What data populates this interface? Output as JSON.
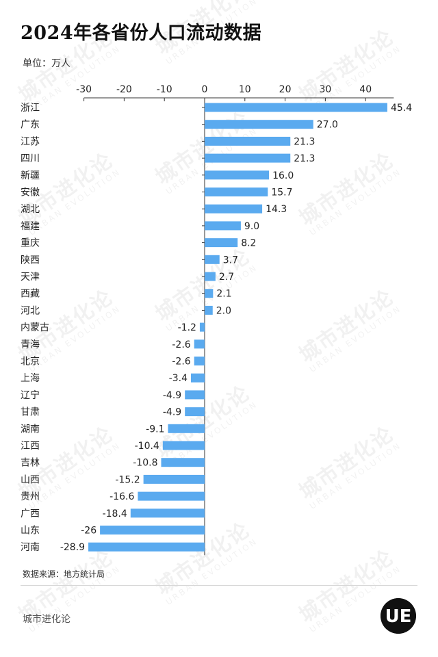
{
  "header": {
    "title": "2024年各省份人口流动数据",
    "unit": "单位：万人"
  },
  "footer": {
    "source": "数据来源：地方统计局",
    "brand": "城市进化论",
    "logo_text": "UE"
  },
  "watermark": {
    "cn": "城市进化论",
    "en": "URBAN EVOLUTION"
  },
  "colors": {
    "bar": "#5aaaef",
    "axis": "#333333",
    "text": "#222222"
  },
  "chart_data": {
    "type": "bar",
    "orientation": "horizontal",
    "title": "2024年各省份人口流动数据",
    "ylabel": "单位：万人",
    "xlim": [
      -30,
      47
    ],
    "xticks": [
      -30,
      -20,
      -10,
      0,
      10,
      20,
      30,
      40
    ],
    "xtick_labels": [
      "-30",
      "-20",
      "-10",
      "0",
      "10",
      "20",
      "30",
      "40"
    ],
    "x_axis_position": "top",
    "grid": false,
    "categories": [
      "浙江",
      "广东",
      "江苏",
      "四川",
      "新疆",
      "安徽",
      "湖北",
      "福建",
      "重庆",
      "陕西",
      "天津",
      "西藏",
      "河北",
      "内蒙古",
      "青海",
      "北京",
      "上海",
      "辽宁",
      "甘肃",
      "湖南",
      "江西",
      "吉林",
      "山西",
      "贵州",
      "广西",
      "山东",
      "河南"
    ],
    "values": [
      45.4,
      27.0,
      21.3,
      21.3,
      16.0,
      15.7,
      14.3,
      9.0,
      8.2,
      3.7,
      2.7,
      2.1,
      2.0,
      -1.2,
      -2.6,
      -2.6,
      -3.4,
      -4.9,
      -4.9,
      -9.1,
      -10.4,
      -10.8,
      -15.2,
      -16.6,
      -18.4,
      -26,
      -28.9
    ],
    "value_labels": [
      "45.4",
      "27.0",
      "21.3",
      "21.3",
      "16.0",
      "15.7",
      "14.3",
      "9.0",
      "8.2",
      "3.7",
      "2.7",
      "2.1",
      "2.0",
      "-1.2",
      "-2.6",
      "-2.6",
      "-3.4",
      "-4.9",
      "-4.9",
      "-9.1",
      "-10.4",
      "-10.8",
      "-15.2",
      "-16.6",
      "-18.4",
      "-26",
      "-28.9"
    ]
  }
}
